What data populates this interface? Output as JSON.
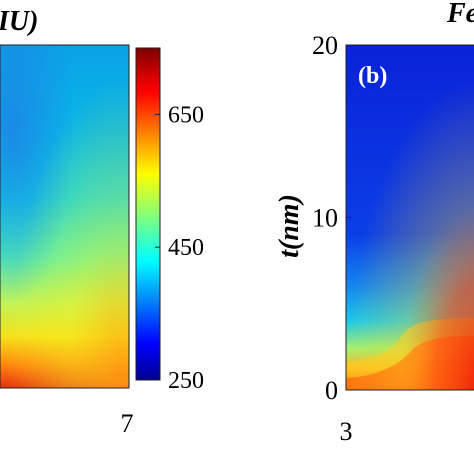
{
  "chart_data": [
    {
      "type": "heatmap",
      "panel": "a",
      "title_fragment": "IU)",
      "x_tick_labels": [
        "7"
      ],
      "colorbar": {
        "range": [
          250,
          750
        ],
        "tick_values": [
          250,
          450,
          650
        ],
        "tick_labels": [
          "250",
          "450",
          "650"
        ],
        "colormap": "jet"
      },
      "grid": false
    },
    {
      "type": "heatmap",
      "panel": "b",
      "panel_label": "(b)",
      "title_fragment": "Fe",
      "ylabel": "t(nm)",
      "x_tick_labels": [
        "3"
      ],
      "y_tick_labels": [
        "0",
        "10",
        "20"
      ],
      "ylim": [
        0,
        20
      ],
      "colormap": "jet",
      "grid": false
    }
  ]
}
